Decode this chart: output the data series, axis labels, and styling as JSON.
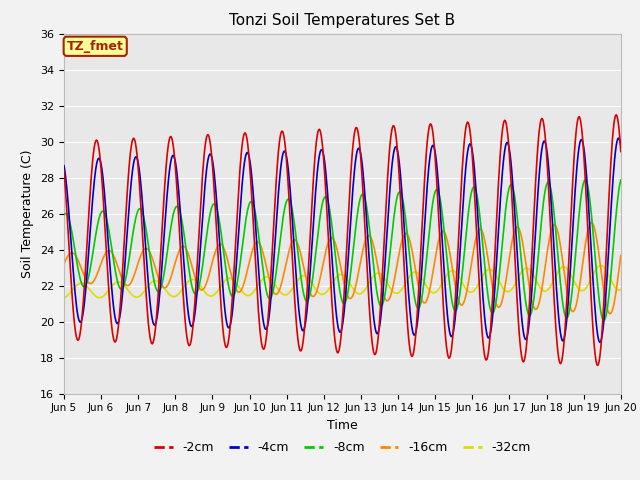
{
  "title": "Tonzi Soil Temperatures Set B",
  "xlabel": "Time",
  "ylabel": "Soil Temperature (C)",
  "ylim": [
    16,
    36
  ],
  "xlim_days": [
    5,
    20
  ],
  "plot_bg_color": "#e8e8e8",
  "fig_bg_color": "#f2f2f2",
  "grid_color": "#ffffff",
  "annotation_label": "TZ_fmet",
  "annotation_bg": "#ffff99",
  "annotation_border": "#aa2200",
  "legend_entries": [
    "-2cm",
    "-4cm",
    "-8cm",
    "-16cm",
    "-32cm"
  ],
  "line_colors": [
    "#dd0000",
    "#0000cc",
    "#00cc00",
    "#ff8800",
    "#dddd00"
  ],
  "line_widths": [
    1.2,
    1.2,
    1.2,
    1.2,
    1.2
  ],
  "xtick_labels": [
    "Jun 5",
    "Jun 6",
    "Jun 7",
    "Jun 8",
    "Jun 9",
    "Jun 10",
    "Jun 11",
    "Jun 12",
    "Jun 13",
    "Jun 14",
    "Jun 15",
    "Jun 16",
    "Jun 17",
    "Jun 18",
    "Jun 19",
    "Jun 20"
  ],
  "xtick_positions": [
    5,
    6,
    7,
    8,
    9,
    10,
    11,
    12,
    13,
    14,
    15,
    16,
    17,
    18,
    19,
    20
  ],
  "ytick_labels": [
    "16",
    "18",
    "20",
    "22",
    "24",
    "26",
    "28",
    "30",
    "32",
    "34",
    "36"
  ],
  "ytick_positions": [
    16,
    18,
    20,
    22,
    24,
    26,
    28,
    30,
    32,
    34,
    36
  ]
}
